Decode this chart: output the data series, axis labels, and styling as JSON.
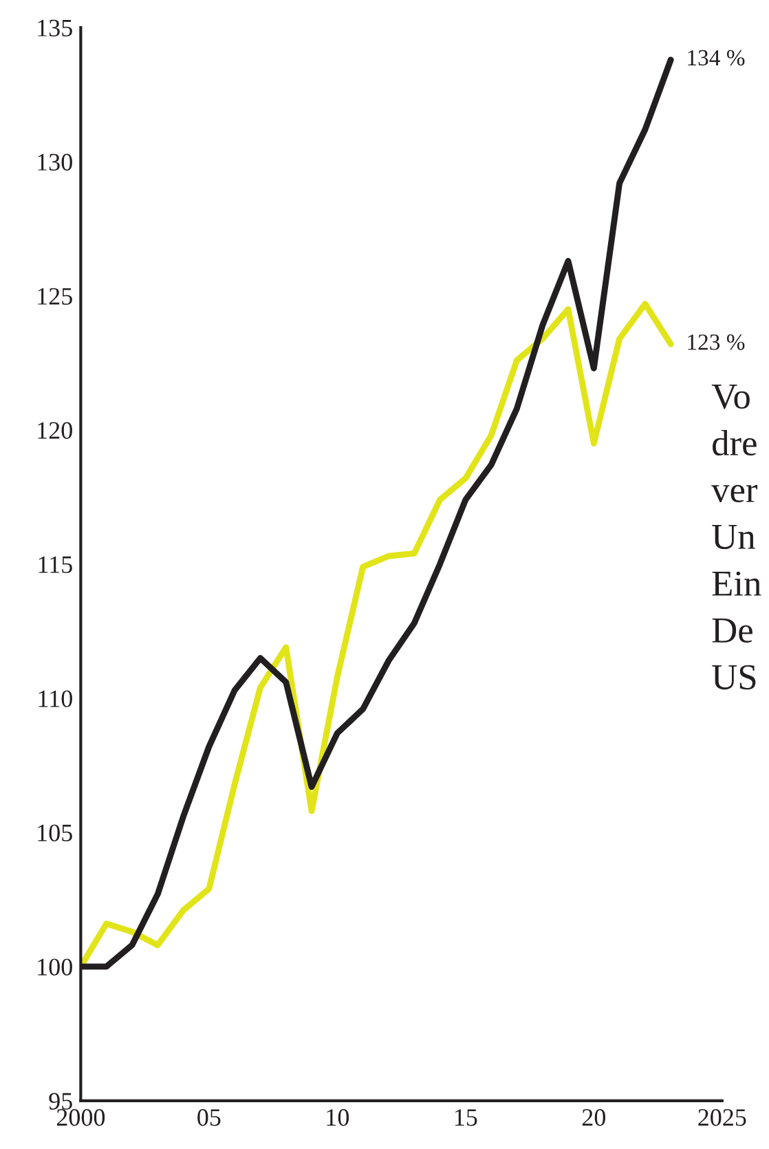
{
  "chart_data": {
    "type": "line",
    "x": [
      2000,
      2001,
      2002,
      2003,
      2004,
      2005,
      2006,
      2007,
      2008,
      2009,
      2010,
      2011,
      2012,
      2013,
      2014,
      2015,
      2016,
      2017,
      2018,
      2019,
      2020,
      2021,
      2022,
      2023
    ],
    "series": [
      {
        "color": "#e2e41a",
        "values": [
          100,
          101.6,
          101.3,
          100.8,
          102.1,
          102.9,
          106.8,
          110.4,
          111.9,
          105.8,
          110.8,
          114.9,
          115.3,
          115.4,
          117.4,
          118.2,
          119.8,
          122.6,
          123.4,
          124.5,
          119.5,
          123.4,
          124.7,
          123.2
        ]
      },
      {
        "color": "#231f20",
        "values": [
          100,
          100.0,
          100.8,
          102.7,
          105.6,
          108.2,
          110.3,
          111.5,
          110.6,
          106.7,
          108.7,
          109.6,
          111.4,
          112.8,
          115.0,
          117.4,
          118.7,
          120.8,
          123.9,
          126.3,
          122.3,
          129.2,
          131.2,
          133.8
        ]
      }
    ],
    "xlim": [
      2000,
      2025
    ],
    "xticks": [
      2000,
      {
        "value": 2005,
        "label": "05"
      },
      {
        "value": 2010,
        "label": "10"
      },
      {
        "value": 2015,
        "label": "15"
      },
      {
        "value": 2020,
        "label": "20"
      },
      2025
    ],
    "ylim": [
      95,
      135
    ],
    "yticks": [
      95,
      100,
      105,
      110,
      115,
      120,
      125,
      130,
      135
    ],
    "grid": false,
    "legend": false,
    "marker": "none",
    "line_style": "solid",
    "annotations": [
      {
        "text": "134 %",
        "x": 2023,
        "y": 133.8
      },
      {
        "text": "123 %",
        "x": 2023,
        "y": 123.2
      },
      "Vo\ndre\nver\nUn\nEin\nDe\nUS"
    ]
  }
}
